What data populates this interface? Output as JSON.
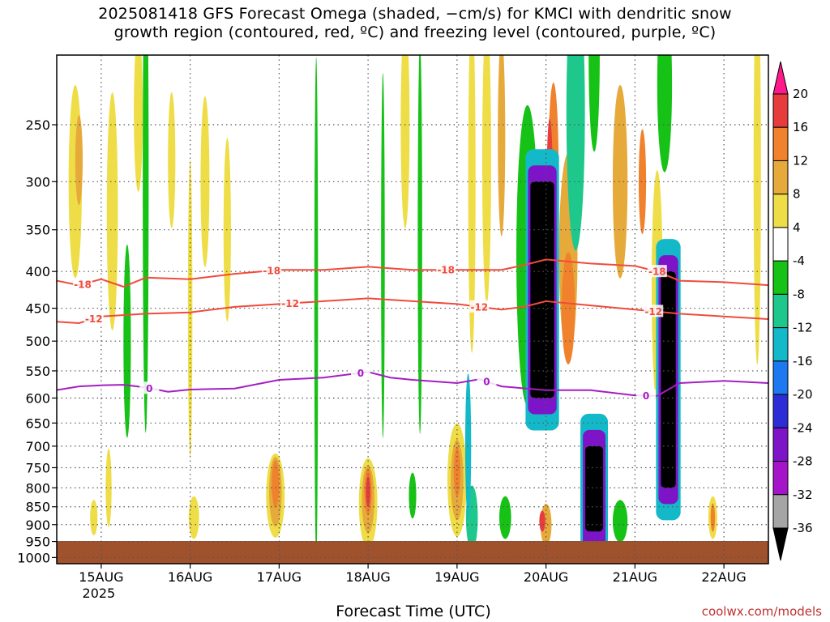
{
  "title_lines": [
    "2025081418 GFS Forecast Omega (shaded, −cm/s) for KMCI with dendritic snow",
    "growth region (contoured, red, ºC) and freezing level (contoured, purple, ºC)"
  ],
  "credit": "coolwx.com/models",
  "chart_data": {
    "type": "heatmap",
    "title": "2025081418 GFS Forecast Omega (shaded, −cm/s) for KMCI with dendritic snow growth region (contoured, red, ºC) and freezing level (contoured, purple, ºC)",
    "xlabel": "Forecast Time (UTC)",
    "ylabel": "",
    "x_range_hours": [
      -12,
      180
    ],
    "x_ticks": [
      {
        "label": "15AUG",
        "hours": 0,
        "sub": "2025"
      },
      {
        "label": "16AUG",
        "hours": 24,
        "sub": ""
      },
      {
        "label": "17AUG",
        "hours": 48,
        "sub": ""
      },
      {
        "label": "18AUG",
        "hours": 72,
        "sub": ""
      },
      {
        "label": "19AUG",
        "hours": 96,
        "sub": ""
      },
      {
        "label": "20AUG",
        "hours": 120,
        "sub": ""
      },
      {
        "label": "21AUG",
        "hours": 144,
        "sub": ""
      },
      {
        "label": "22AUG",
        "hours": 168,
        "sub": ""
      }
    ],
    "y_ticks": [
      250,
      300,
      350,
      400,
      450,
      500,
      550,
      600,
      650,
      700,
      750,
      800,
      850,
      900,
      950,
      1000
    ],
    "y_range_hpa": [
      200,
      1020
    ],
    "surface_hpa": 975,
    "grid": true,
    "colorbar": {
      "ticks": [
        "20",
        "16",
        "12",
        "8",
        "4",
        "-4",
        "-8",
        "-12",
        "-16",
        "-20",
        "-24",
        "-28",
        "-32",
        "-36"
      ],
      "colors": [
        "#ff1a8c",
        "#e63c3c",
        "#f0822d",
        "#e6aa3a",
        "#eedd46",
        "#ffffff",
        "#16c216",
        "#1ec88c",
        "#13b9c8",
        "#1e78f0",
        "#2d2dd7",
        "#7d14c8",
        "#a514c8",
        "#a5a5a5",
        "#000000"
      ]
    },
    "contours": [
      {
        "label": "-18",
        "color": "#f04b3c",
        "points": [
          [
            -12,
            412
          ],
          [
            -6,
            418
          ],
          [
            0,
            410
          ],
          [
            6,
            420
          ],
          [
            12,
            408
          ],
          [
            24,
            410
          ],
          [
            36,
            403
          ],
          [
            48,
            398
          ],
          [
            60,
            398
          ],
          [
            72,
            394
          ],
          [
            84,
            398
          ],
          [
            96,
            398
          ],
          [
            108,
            398
          ],
          [
            114,
            392
          ],
          [
            120,
            385
          ],
          [
            132,
            390
          ],
          [
            144,
            393
          ],
          [
            150,
            400
          ],
          [
            156,
            412
          ],
          [
            168,
            414
          ],
          [
            180,
            418
          ]
        ],
        "labels_at_hours": [
          -5,
          46,
          93,
          150
        ]
      },
      {
        "label": "-12",
        "color": "#f04b3c",
        "points": [
          [
            -12,
            470
          ],
          [
            -6,
            472
          ],
          [
            0,
            462
          ],
          [
            12,
            458
          ],
          [
            24,
            456
          ],
          [
            36,
            448
          ],
          [
            48,
            444
          ],
          [
            60,
            440
          ],
          [
            72,
            436
          ],
          [
            84,
            440
          ],
          [
            96,
            444
          ],
          [
            102,
            448
          ],
          [
            108,
            452
          ],
          [
            114,
            448
          ],
          [
            120,
            440
          ],
          [
            132,
            446
          ],
          [
            144,
            452
          ],
          [
            156,
            458
          ],
          [
            168,
            462
          ],
          [
            180,
            466
          ]
        ],
        "labels_at_hours": [
          -2,
          51,
          102,
          149
        ]
      },
      {
        "label": "0",
        "color": "#a51ec3",
        "points": [
          [
            -12,
            585
          ],
          [
            -6,
            578
          ],
          [
            0,
            576
          ],
          [
            6,
            575
          ],
          [
            12,
            580
          ],
          [
            18,
            588
          ],
          [
            24,
            584
          ],
          [
            36,
            582
          ],
          [
            48,
            566
          ],
          [
            60,
            562
          ],
          [
            72,
            552
          ],
          [
            78,
            562
          ],
          [
            84,
            566
          ],
          [
            96,
            572
          ],
          [
            102,
            565
          ],
          [
            108,
            578
          ],
          [
            120,
            585
          ],
          [
            132,
            585
          ],
          [
            138,
            590
          ],
          [
            144,
            595
          ],
          [
            150,
            596
          ],
          [
            156,
            572
          ],
          [
            168,
            568
          ],
          [
            180,
            572
          ]
        ],
        "labels_at_hours": [
          13,
          70,
          104,
          147
        ]
      }
    ]
  }
}
